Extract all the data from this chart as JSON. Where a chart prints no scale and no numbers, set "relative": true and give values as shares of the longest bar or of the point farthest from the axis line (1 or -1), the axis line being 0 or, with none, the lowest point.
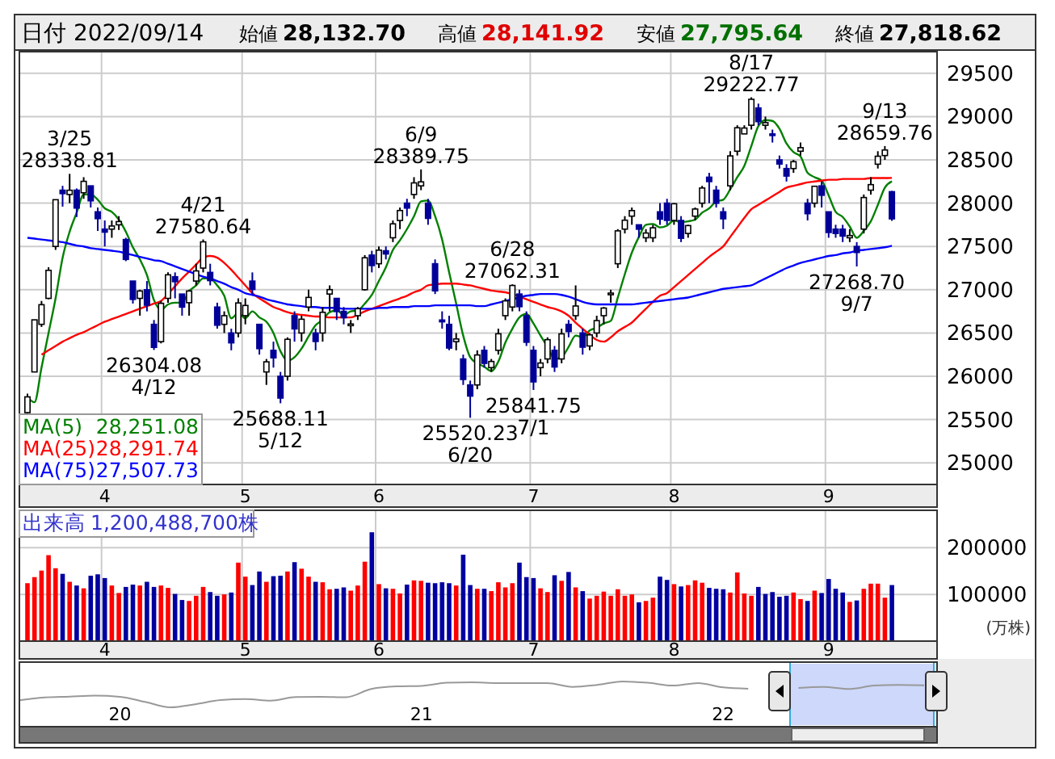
{
  "chart_data": [
    {
      "type": "candlestick",
      "title": "日付 2022/09/14",
      "legend": "bottom left",
      "grid": true,
      "annotations": [
        "始値 28,132.70",
        "高値 28,141.92",
        "安値 27,795.64",
        "終値 27,818.62",
        "28,251.08",
        "28,291.74",
        "27,507.73",
        {
          "text": "3/25\n28338.81",
          "y": 28338.81
        },
        {
          "text": "26304.08\n4/12",
          "y": 26304.08
        },
        {
          "text": "4/21\n27580.64",
          "y": 27580.64
        },
        {
          "text": "25688.11\n5/12",
          "y": 25688.11
        },
        {
          "text": "6/9\n28389.75",
          "y": 28389.75
        },
        {
          "text": "25520.23\n6/20",
          "y": 25520.23
        },
        {
          "text": "6/28\n27062.31",
          "y": 27062.31
        },
        {
          "text": "25841.75\n7/1",
          "y": 25841.75
        },
        {
          "text": "8/17\n29222.77",
          "y": 29222.77
        },
        {
          "text": "27268.70\n9/7",
          "y": 27268.7
        },
        {
          "text": "9/13\n28659.76",
          "y": 28659.76
        }
      ],
      "categories": [
        null,
        null,
        null,
        null,
        null,
        null,
        null,
        null,
        null,
        null,
        null,
        "4",
        null,
        null,
        null,
        null,
        null,
        null,
        null,
        null,
        null,
        null,
        null,
        null,
        null,
        null,
        null,
        null,
        null,
        null,
        null,
        "5",
        null,
        null,
        null,
        null,
        null,
        null,
        null,
        null,
        null,
        null,
        null,
        null,
        null,
        null,
        null,
        null,
        null,
        null,
        "6",
        null,
        null,
        null,
        null,
        null,
        null,
        null,
        null,
        null,
        null,
        null,
        null,
        null,
        null,
        null,
        null,
        null,
        null,
        null,
        null,
        null,
        "7",
        null,
        null,
        null,
        null,
        null,
        null,
        null,
        null,
        null,
        null,
        null,
        null,
        null,
        null,
        null,
        null,
        null,
        null,
        null,
        "8",
        null,
        null,
        null,
        null,
        null,
        null,
        null,
        null,
        null,
        null,
        null,
        null,
        null,
        null,
        null,
        null,
        null,
        null,
        null,
        null,
        null,
        "9",
        null,
        null,
        null,
        null,
        null,
        null,
        null,
        null,
        null
      ],
      "ohlc": [
        [
          25580,
          25800,
          25550,
          25762
        ],
        [
          26050,
          26652,
          26050,
          26652
        ],
        [
          26600,
          26870,
          26570,
          26827
        ],
        [
          26900,
          27260,
          26890,
          27224
        ],
        [
          27500,
          28040,
          27460,
          28040
        ],
        [
          28150,
          28200,
          27960,
          28110
        ],
        [
          28100,
          28338.81,
          28000,
          28149
        ],
        [
          28150,
          28170,
          27840,
          27943
        ],
        [
          28120,
          28300,
          28050,
          28252
        ],
        [
          28200,
          28200,
          27950,
          28027
        ],
        [
          27900,
          27950,
          27680,
          27821
        ],
        [
          27700,
          27800,
          27500,
          27665
        ],
        [
          27700,
          27800,
          27600,
          27736
        ],
        [
          27750,
          27850,
          27690,
          27787
        ],
        [
          27580,
          27600,
          27330,
          27350
        ],
        [
          27100,
          27100,
          26840,
          26888
        ],
        [
          26900,
          27000,
          26700,
          26985
        ],
        [
          27000,
          27100,
          26750,
          26821
        ],
        [
          26600,
          26650,
          26304.08,
          26334
        ],
        [
          26400,
          26870,
          26380,
          26843
        ],
        [
          26900,
          27200,
          26850,
          27172
        ],
        [
          27150,
          27200,
          26900,
          27093
        ],
        [
          26950,
          26950,
          26700,
          26799
        ],
        [
          26850,
          27000,
          26700,
          26985
        ],
        [
          27100,
          27300,
          27050,
          27217
        ],
        [
          27250,
          27580.64,
          27200,
          27553
        ],
        [
          27200,
          27300,
          27050,
          27105
        ],
        [
          26800,
          26850,
          26550,
          26590
        ],
        [
          26600,
          26750,
          26500,
          26700
        ],
        [
          26500,
          26550,
          26300,
          26386
        ],
        [
          26500,
          26900,
          26450,
          26847
        ],
        [
          26700,
          26900,
          26600,
          26818
        ],
        [
          27100,
          27200,
          26950,
          27003
        ],
        [
          26600,
          26600,
          26250,
          26319
        ],
        [
          26050,
          26200,
          25900,
          26167
        ],
        [
          26300,
          26400,
          26100,
          26213
        ],
        [
          26000,
          26050,
          25688.11,
          25748
        ],
        [
          26000,
          26450,
          25950,
          26427
        ],
        [
          26700,
          26750,
          26400,
          26547
        ],
        [
          26500,
          26700,
          26400,
          26659
        ],
        [
          26800,
          27000,
          26750,
          26911
        ],
        [
          26500,
          26550,
          26300,
          26402
        ],
        [
          26500,
          26800,
          26400,
          26739
        ],
        [
          26950,
          27050,
          26750,
          27001
        ],
        [
          26900,
          26900,
          26650,
          26748
        ],
        [
          26750,
          26800,
          26600,
          26677
        ],
        [
          26600,
          26650,
          26500,
          26604
        ],
        [
          26700,
          26800,
          26650,
          26781
        ],
        [
          27000,
          27400,
          26990,
          27369
        ],
        [
          27400,
          27450,
          27200,
          27279
        ],
        [
          27300,
          27500,
          27250,
          27457
        ],
        [
          27450,
          27500,
          27350,
          27413
        ],
        [
          27600,
          27800,
          27550,
          27761
        ],
        [
          27800,
          27950,
          27700,
          27915
        ],
        [
          28000,
          28050,
          27850,
          27943
        ],
        [
          28100,
          28300,
          28050,
          28234
        ],
        [
          28200,
          28389.75,
          28150,
          28246
        ],
        [
          28000,
          28050,
          27750,
          27824
        ],
        [
          27300,
          27350,
          26950,
          26987
        ],
        [
          26650,
          26750,
          26550,
          26629
        ],
        [
          26600,
          26700,
          26300,
          26326
        ],
        [
          26400,
          26500,
          26300,
          26431
        ],
        [
          26200,
          26250,
          25900,
          25963
        ],
        [
          25900,
          25950,
          25520.23,
          25771
        ],
        [
          25900,
          26300,
          25850,
          26246
        ],
        [
          26300,
          26350,
          26100,
          26149
        ],
        [
          26100,
          26200,
          26050,
          26171
        ],
        [
          26300,
          26550,
          26250,
          26491
        ],
        [
          26700,
          26900,
          26650,
          26871
        ],
        [
          26800,
          27062.31,
          26750,
          27049
        ],
        [
          26950,
          27000,
          26750,
          26804
        ],
        [
          26700,
          26750,
          26350,
          26393
        ],
        [
          26300,
          26350,
          25841.75,
          25935
        ],
        [
          26100,
          26200,
          26000,
          26153
        ],
        [
          26200,
          26450,
          26150,
          26423
        ],
        [
          26300,
          26350,
          26050,
          26107
        ],
        [
          26200,
          26550,
          26150,
          26490
        ],
        [
          26600,
          26650,
          26450,
          26517
        ],
        [
          26700,
          27050,
          26650,
          26812
        ],
        [
          26500,
          26550,
          26250,
          26336
        ],
        [
          26350,
          26500,
          26300,
          26478
        ],
        [
          26500,
          26700,
          26450,
          26643
        ],
        [
          26700,
          26800,
          26600,
          26788
        ],
        [
          26950,
          27000,
          26850,
          26961
        ],
        [
          27300,
          27700,
          27250,
          27680
        ],
        [
          27700,
          27850,
          27650,
          27803
        ],
        [
          27850,
          27950,
          27750,
          27914
        ],
        [
          27750,
          27750,
          27600,
          27699
        ],
        [
          27600,
          27700,
          27550,
          27655
        ],
        [
          27600,
          27750,
          27550,
          27715
        ],
        [
          27900,
          28000,
          27750,
          27815
        ],
        [
          28000,
          28050,
          27750,
          27801
        ],
        [
          27800,
          28000,
          27750,
          27993
        ],
        [
          27800,
          27850,
          27550,
          27594
        ],
        [
          27650,
          27750,
          27600,
          27741
        ],
        [
          27850,
          27950,
          27800,
          27932
        ],
        [
          28000,
          28200,
          27950,
          28175
        ],
        [
          28300,
          28350,
          28000,
          28249
        ],
        [
          28150,
          28200,
          27950,
          27999
        ],
        [
          27900,
          27950,
          27700,
          27819
        ],
        [
          28200,
          28600,
          28150,
          28546
        ],
        [
          28600,
          28900,
          28550,
          28871
        ],
        [
          28800,
          28900,
          28800,
          28868
        ],
        [
          28900,
          29222.77,
          28850,
          29200
        ],
        [
          29100,
          29150,
          28900,
          28942
        ],
        [
          28900,
          29000,
          28850,
          28930
        ],
        [
          28800,
          28850,
          28700,
          28794
        ],
        [
          28500,
          28550,
          28400,
          28452
        ],
        [
          28400,
          28450,
          28250,
          28313
        ],
        [
          28400,
          28500,
          28350,
          28479
        ],
        [
          28600,
          28700,
          28550,
          28641
        ],
        [
          28000,
          28050,
          27800,
          27878
        ],
        [
          28000,
          28200,
          27950,
          28195
        ],
        [
          28200,
          28250,
          27950,
          28091
        ],
        [
          27900,
          27900,
          27600,
          27661
        ],
        [
          27700,
          27750,
          27600,
          27650
        ],
        [
          27700,
          27750,
          27550,
          27619
        ],
        [
          27600,
          27700,
          27550,
          27626
        ],
        [
          27500,
          27550,
          27268.7,
          27430
        ],
        [
          27700,
          28100,
          27650,
          28065
        ],
        [
          28150,
          28300,
          28100,
          28214
        ],
        [
          28450,
          28600,
          28400,
          28542
        ],
        [
          28550,
          28659.76,
          28500,
          28614
        ],
        [
          28132.7,
          28141.92,
          27795.64,
          27818.62
        ]
      ],
      "series": [
        {
          "type": "line",
          "name": "MA(5)",
          "color": "#008000",
          "values": [
            25760,
            25700,
            26100,
            26500,
            26900,
            27370,
            27670,
            27890,
            28100,
            28100,
            28040,
            27940,
            27900,
            27810,
            27670,
            27490,
            27350,
            27170,
            26880,
            26770,
            26830,
            26850,
            26850,
            26980,
            27050,
            27130,
            27130,
            27050,
            26930,
            26670,
            26730,
            26670,
            26750,
            26680,
            26630,
            26500,
            26290,
            26180,
            26220,
            26320,
            26460,
            26590,
            26650,
            26740,
            26760,
            26710,
            26750,
            26760,
            26840,
            26940,
            27100,
            27260,
            27460,
            27570,
            27700,
            27850,
            28020,
            28030,
            27850,
            27580,
            27200,
            26840,
            26470,
            26220,
            26150,
            26110,
            26060,
            26170,
            26390,
            26550,
            26680,
            26720,
            26610,
            26470,
            26340,
            26200,
            26220,
            26340,
            26470,
            26450,
            26530,
            26560,
            26610,
            26640,
            26910,
            27180,
            27430,
            27610,
            27750,
            27760,
            27720,
            27740,
            27800,
            27780,
            27790,
            27810,
            27890,
            27940,
            28020,
            28040,
            28160,
            28300,
            28430,
            28660,
            28890,
            28960,
            28950,
            28860,
            28690,
            28590,
            28540,
            28350,
            28300,
            28260,
            28090,
            27900,
            27840,
            27730,
            27600,
            27680,
            27790,
            27980,
            28180,
            28251.08
          ]
        },
        {
          "type": "line",
          "name": "MA(25)",
          "color": "#ff0000",
          "values": [
            null,
            null,
            26250,
            26300,
            26350,
            26400,
            26440,
            26480,
            26510,
            26550,
            26590,
            26630,
            26660,
            26690,
            26720,
            26750,
            26780,
            26810,
            26840,
            26870,
            26950,
            27040,
            27130,
            27210,
            27290,
            27370,
            27390,
            27370,
            27310,
            27230,
            27140,
            27050,
            26960,
            26900,
            26850,
            26800,
            26770,
            26740,
            26720,
            26710,
            26700,
            26690,
            26690,
            26680,
            26680,
            26680,
            26680,
            26710,
            26750,
            26780,
            26810,
            26840,
            26870,
            26900,
            26930,
            26970,
            27000,
            27050,
            27060,
            27070,
            27070,
            27070,
            27060,
            27050,
            27030,
            27010,
            26990,
            26980,
            26970,
            26950,
            26920,
            26890,
            26860,
            26830,
            26800,
            26780,
            26750,
            26700,
            26620,
            26550,
            26480,
            26420,
            26400,
            26450,
            26520,
            26570,
            26620,
            26700,
            26780,
            26860,
            26930,
            26960,
            27030,
            27100,
            27170,
            27240,
            27310,
            27380,
            27440,
            27500,
            27610,
            27720,
            27830,
            27930,
            27980,
            28030,
            28080,
            28130,
            28180,
            28200,
            28220,
            28240,
            28250,
            28260,
            28270,
            28270,
            28280,
            28280,
            28280,
            28280,
            28290,
            28290,
            28290,
            28291.74
          ]
        },
        {
          "type": "line",
          "name": "MA(75)",
          "color": "#0000ff",
          "values": [
            27600,
            27590,
            27580,
            27570,
            27560,
            27550,
            27530,
            27510,
            27500,
            27480,
            27470,
            27460,
            27450,
            27440,
            27420,
            27400,
            27380,
            27360,
            27340,
            27330,
            27300,
            27270,
            27240,
            27210,
            27180,
            27150,
            27130,
            27100,
            27070,
            27030,
            27000,
            26960,
            26940,
            26920,
            26890,
            26870,
            26850,
            26830,
            26820,
            26810,
            26800,
            26800,
            26790,
            26790,
            26790,
            26780,
            26780,
            26780,
            26780,
            26780,
            26790,
            26790,
            26800,
            26800,
            26800,
            26810,
            26810,
            26810,
            26820,
            26820,
            26820,
            26820,
            26820,
            26820,
            26810,
            26810,
            26830,
            26850,
            26870,
            26890,
            26910,
            26930,
            26940,
            26950,
            26950,
            26950,
            26940,
            26920,
            26890,
            26860,
            26840,
            26830,
            26830,
            26830,
            26830,
            26830,
            26830,
            26840,
            26850,
            26860,
            26870,
            26880,
            26890,
            26900,
            26910,
            26930,
            26950,
            26970,
            26990,
            27010,
            27020,
            27030,
            27040,
            27050,
            27090,
            27130,
            27170,
            27210,
            27250,
            27280,
            27310,
            27330,
            27350,
            27370,
            27390,
            27400,
            27420,
            27430,
            27450,
            27460,
            27470,
            27480,
            27490,
            27507.73
          ]
        }
      ],
      "ylim": [
        24750,
        29750
      ],
      "yticks": [
        25000,
        25500,
        26000,
        26500,
        27000,
        27500,
        28000,
        28500,
        29000,
        29500
      ]
    },
    {
      "type": "bar",
      "legend": "top left",
      "grid": true,
      "ylabel": "(万株)",
      "annotations": [
        "1,200,488,700株"
      ],
      "categories": [
        null,
        null,
        null,
        null,
        null,
        null,
        null,
        null,
        null,
        null,
        null,
        "4",
        null,
        null,
        null,
        null,
        null,
        null,
        null,
        null,
        null,
        null,
        null,
        null,
        null,
        null,
        null,
        null,
        null,
        null,
        null,
        "5",
        null,
        null,
        null,
        null,
        null,
        null,
        null,
        null,
        null,
        null,
        null,
        null,
        null,
        null,
        null,
        null,
        null,
        null,
        "6",
        null,
        null,
        null,
        null,
        null,
        null,
        null,
        null,
        null,
        null,
        null,
        null,
        null,
        null,
        null,
        null,
        null,
        null,
        null,
        null,
        null,
        "7",
        null,
        null,
        null,
        null,
        null,
        null,
        null,
        null,
        null,
        null,
        null,
        null,
        null,
        null,
        null,
        null,
        null,
        null,
        null,
        "8",
        null,
        null,
        null,
        null,
        null,
        null,
        null,
        null,
        null,
        null,
        null,
        null,
        null,
        null,
        null,
        null,
        null,
        null,
        null,
        null,
        null,
        "9",
        null,
        null,
        null,
        null,
        null,
        null,
        null,
        null,
        null
      ],
      "series": [
        {
          "name": "出来高",
          "values": [
            124000,
            137000,
            151000,
            184000,
            156000,
            144000,
            127000,
            119000,
            113000,
            140000,
            143000,
            135000,
            119000,
            103000,
            116000,
            121000,
            119000,
            127000,
            116000,
            119000,
            114000,
            101000,
            88000,
            86000,
            97000,
            116000,
            105000,
            97000,
            100000,
            104000,
            168000,
            138000,
            120000,
            149000,
            127000,
            139000,
            140000,
            149000,
            169000,
            155000,
            138000,
            127000,
            126000,
            111000,
            112000,
            115000,
            108000,
            119000,
            170000,
            233000,
            122000,
            113000,
            112000,
            102000,
            121000,
            130000,
            129000,
            125000,
            124000,
            126000,
            124000,
            119000,
            185000,
            120000,
            112000,
            112000,
            107000,
            126000,
            115000,
            124000,
            168000,
            137000,
            135000,
            113000,
            105000,
            141000,
            129000,
            148000,
            115000,
            107000,
            91000,
            97000,
            106000,
            97000,
            111000,
            97000,
            100000,
            83000,
            86000,
            93000,
            138000,
            131000,
            122000,
            117000,
            120000,
            130000,
            125000,
            114000,
            112000,
            111000,
            104000,
            147000,
            102000,
            97000,
            116000,
            101000,
            105000,
            95000,
            97000,
            104000,
            90000,
            86000,
            108000,
            103000,
            133000,
            112000,
            104000,
            84000,
            87000,
            112000,
            123000,
            123000,
            93000,
            120000
          ],
          "colors": [
            "#ff0000",
            "#ff0000",
            "#ff0000",
            "#ff0000",
            "#ff0000",
            "#0000a0",
            "#ff0000",
            "#0000a0",
            "#ff0000",
            "#0000a0",
            "#0000a0",
            "#0000a0",
            "#ff0000",
            "#ff0000",
            "#0000a0",
            "#0000a0",
            "#ff0000",
            "#0000a0",
            "#0000a0",
            "#ff0000",
            "#ff0000",
            "#0000a0",
            "#0000a0",
            "#ff0000",
            "#ff0000",
            "#ff0000",
            "#0000a0",
            "#0000a0",
            "#ff0000",
            "#0000a0",
            "#ff0000",
            "#ff0000",
            "#0000a0",
            "#0000a0",
            "#ff0000",
            "#0000a0",
            "#0000a0",
            "#ff0000",
            "#0000a0",
            "#ff0000",
            "#ff0000",
            "#0000a0",
            "#ff0000",
            "#ff0000",
            "#0000a0",
            "#0000a0",
            "#ff0000",
            "#ff0000",
            "#ff0000",
            "#0000a0",
            "#ff0000",
            "#0000a0",
            "#ff0000",
            "#ff0000",
            "#0000a0",
            "#ff0000",
            "#ff0000",
            "#0000a0",
            "#0000a0",
            "#0000a0",
            "#0000a0",
            "#ff0000",
            "#0000a0",
            "#0000a0",
            "#ff0000",
            "#0000a0",
            "#ff0000",
            "#ff0000",
            "#ff0000",
            "#ff0000",
            "#0000a0",
            "#0000a0",
            "#0000a0",
            "#ff0000",
            "#ff0000",
            "#0000a0",
            "#ff0000",
            "#0000a0",
            "#ff0000",
            "#0000a0",
            "#ff0000",
            "#ff0000",
            "#ff0000",
            "#ff0000",
            "#ff0000",
            "#ff0000",
            "#ff0000",
            "#0000a0",
            "#ff0000",
            "#ff0000",
            "#0000a0",
            "#0000a0",
            "#ff0000",
            "#0000a0",
            "#ff0000",
            "#ff0000",
            "#ff0000",
            "#0000a0",
            "#0000a0",
            "#0000a0",
            "#ff0000",
            "#ff0000",
            "#ff0000",
            "#ff0000",
            "#0000a0",
            "#0000a0",
            "#0000a0",
            "#0000a0",
            "#0000a0",
            "#ff0000",
            "#ff0000",
            "#0000a0",
            "#ff0000",
            "#0000a0",
            "#0000a0",
            "#0000a0",
            "#0000a0",
            "#ff0000",
            "#0000a0",
            "#ff0000",
            "#ff0000",
            "#ff0000",
            "#ff0000",
            "#0000a0"
          ],
          "color": "#3333cc"
        }
      ],
      "ylim": [
        0,
        280000
      ],
      "yticks": [
        100000,
        200000
      ]
    },
    {
      "type": "line",
      "relative": true,
      "color": "#999999",
      "categories": [
        null,
        null,
        null,
        null,
        "20",
        null,
        null,
        null,
        null,
        null,
        null,
        null,
        null,
        null,
        null,
        null,
        "21",
        null,
        null,
        null,
        null,
        null,
        null,
        null,
        null,
        null,
        null,
        null,
        "22",
        null,
        null,
        null,
        null,
        null,
        null,
        null,
        null
      ],
      "values": [
        0.27,
        0.38,
        0.415,
        0.45,
        0.41,
        0.21,
        0,
        0.12,
        0.28,
        0.32,
        0.26,
        0.4,
        0.41,
        0.39,
        0.71,
        0.81,
        0.83,
        0.95,
        0.97,
        0.94,
        0.94,
        0.94,
        0.79,
        0.87,
        1,
        0.95,
        0.84,
        0.94,
        0.77,
        0.72,
        null,
        0.75,
        0.79,
        0.71,
        0.84,
        0.87,
        0.85
      ]
    }
  ]
}
